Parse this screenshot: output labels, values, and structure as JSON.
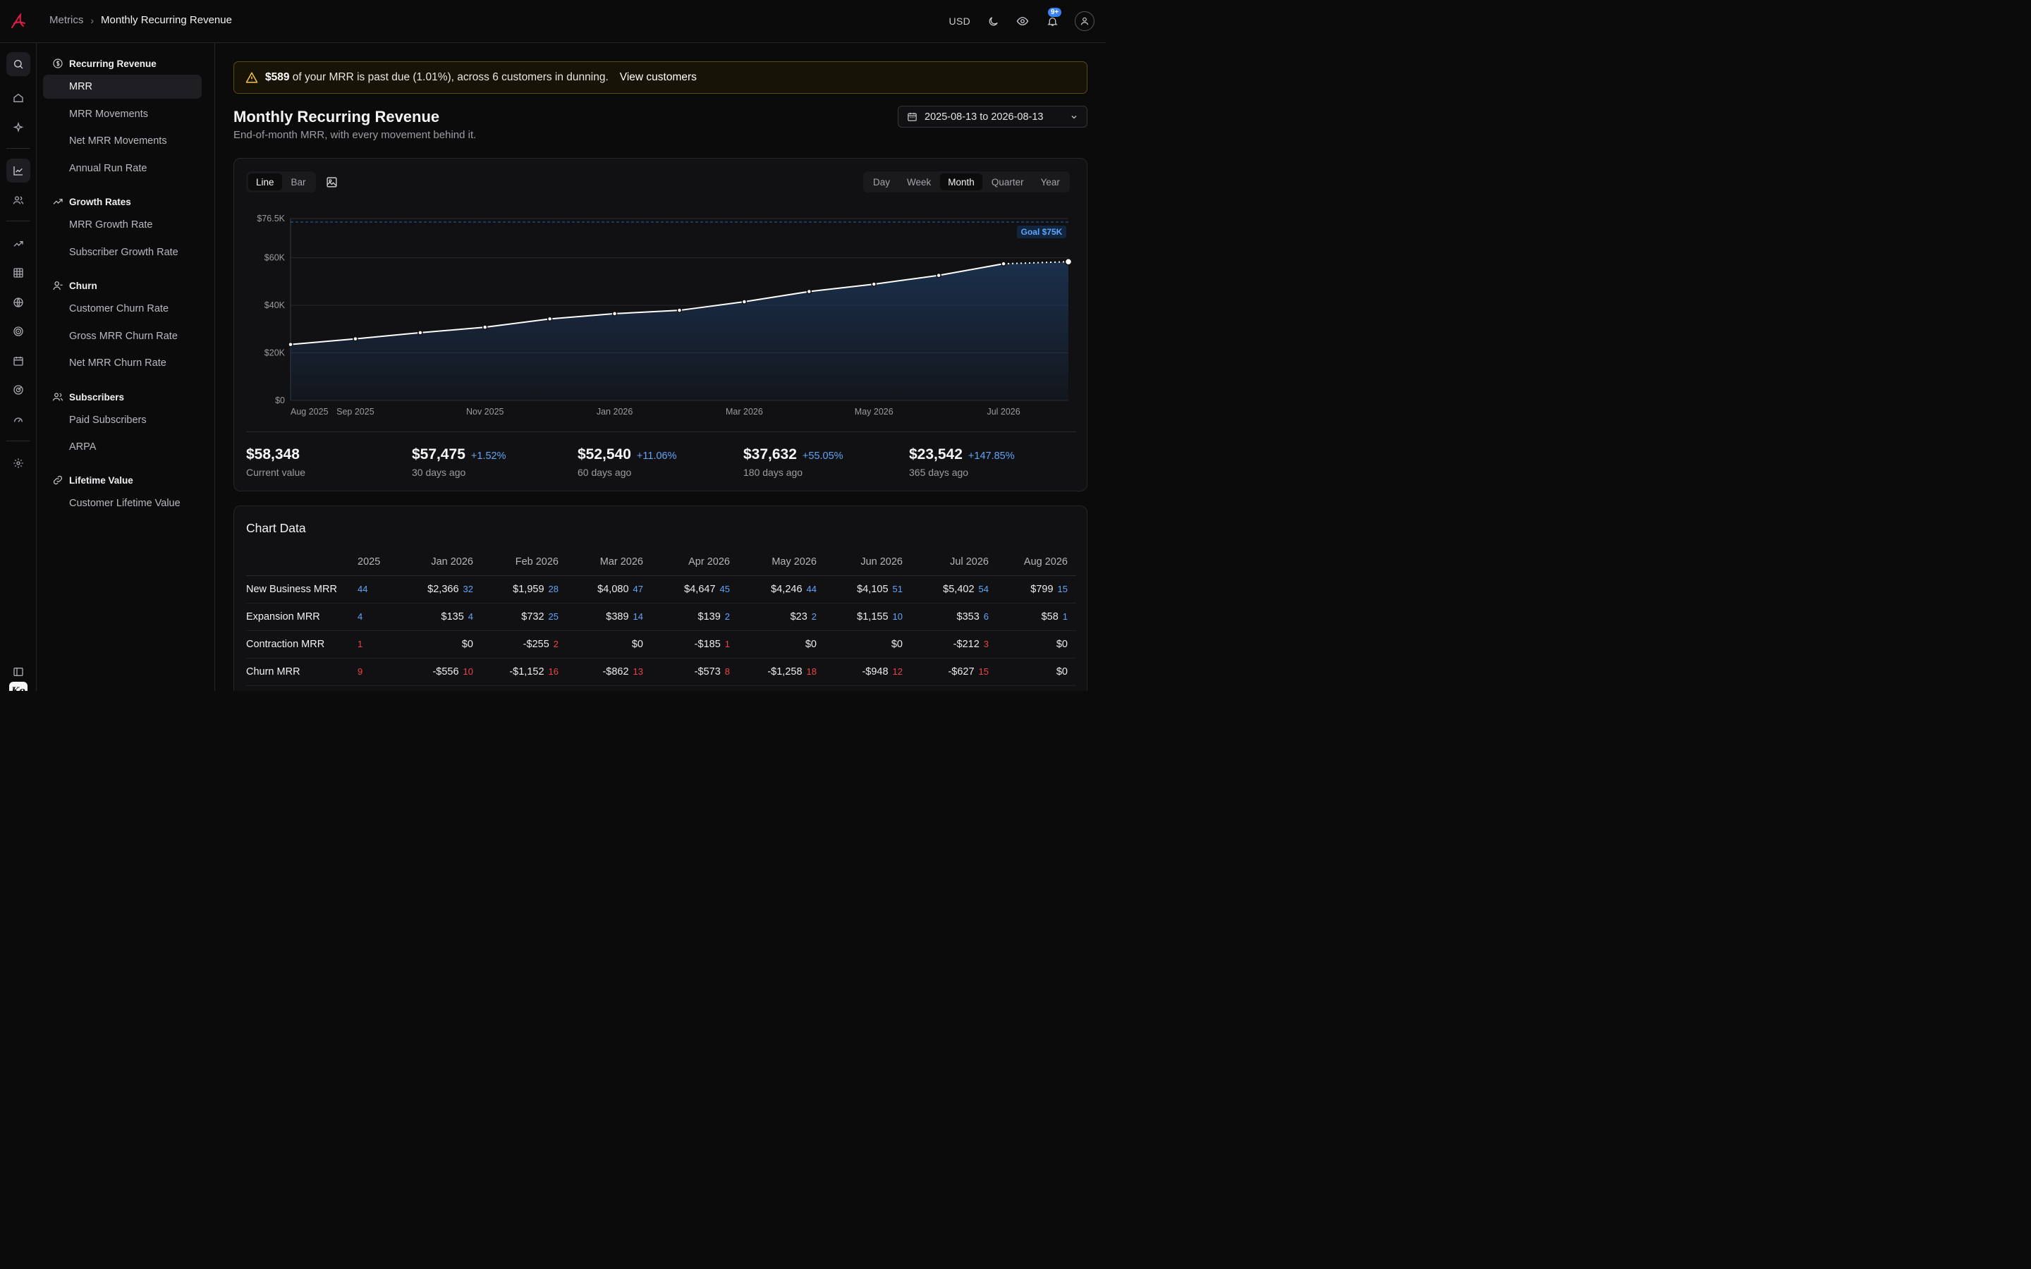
{
  "topbar": {
    "breadcrumb_root": "Metrics",
    "breadcrumb_current": "Monthly Recurring Revenue",
    "currency": "USD",
    "notification_badge": "9+"
  },
  "nav": {
    "groups": [
      {
        "label": "Recurring Revenue",
        "icon": "dollar-circle-icon",
        "items": [
          "MRR",
          "MRR Movements",
          "Net MRR Movements",
          "Annual Run Rate"
        ]
      },
      {
        "label": "Growth Rates",
        "icon": "trending-up-icon",
        "items": [
          "MRR Growth Rate",
          "Subscriber Growth Rate"
        ]
      },
      {
        "label": "Churn",
        "icon": "user-minus-icon",
        "items": [
          "Customer Churn Rate",
          "Gross MRR Churn Rate",
          "Net MRR Churn Rate"
        ]
      },
      {
        "label": "Subscribers",
        "icon": "users-icon",
        "items": [
          "Paid Subscribers",
          "ARPA"
        ]
      },
      {
        "label": "Lifetime Value",
        "icon": "link-icon",
        "items": [
          "Customer Lifetime Value"
        ]
      }
    ],
    "active_item": "MRR"
  },
  "rail_logo_text": "Ko",
  "alert": {
    "amount": "$589",
    "text": "of your MRR is past due (1.01%), across 6 customers in dunning.",
    "link": "View customers"
  },
  "page": {
    "title": "Monthly Recurring Revenue",
    "subtitle": "End-of-month MRR, with every movement behind it.",
    "date_range": "2025-08-13 to 2026-08-13"
  },
  "chart_controls": {
    "types": [
      "Line",
      "Bar"
    ],
    "active_type": "Line",
    "intervals": [
      "Day",
      "Week",
      "Month",
      "Quarter",
      "Year"
    ],
    "active_interval": "Month"
  },
  "chart_data": {
    "type": "area",
    "x": [
      "Aug 2025",
      "Sep 2025",
      "Oct 2025",
      "Nov 2025",
      "Dec 2025",
      "Jan 2026",
      "Feb 2026",
      "Mar 2026",
      "Apr 2026",
      "May 2026",
      "Jun 2026",
      "Jul 2026",
      "Aug 2026"
    ],
    "values": [
      23542,
      25900,
      28500,
      30800,
      34300,
      36500,
      37900,
      41500,
      45800,
      48900,
      52600,
      57475,
      58348
    ],
    "projected_last": true,
    "xtick_labels": [
      "Aug 2025",
      "Sep 2025",
      "Nov 2025",
      "Jan 2026",
      "Mar 2026",
      "May 2026",
      "Jul 2026"
    ],
    "yticks": [
      "$0",
      "$20K",
      "$40K",
      "$60K",
      "$76.5K"
    ],
    "ylim": [
      0,
      76500
    ],
    "goal": {
      "value": 75000,
      "label": "Goal $75K"
    },
    "grid": true,
    "colors": {
      "line": "#ffffff",
      "fill": "#1e3a5f",
      "goal": "#3b82f6"
    }
  },
  "stats": [
    {
      "value": "$58,348",
      "pct": "",
      "label": "Current value"
    },
    {
      "value": "$57,475",
      "pct": "+1.52%",
      "label": "30 days ago"
    },
    {
      "value": "$52,540",
      "pct": "+11.06%",
      "label": "60 days ago"
    },
    {
      "value": "$37,632",
      "pct": "+55.05%",
      "label": "180 days ago"
    },
    {
      "value": "$23,542",
      "pct": "+147.85%",
      "label": "365 days ago"
    }
  ],
  "table": {
    "title": "Chart Data",
    "columns": [
      "",
      "2025",
      "Jan 2026",
      "Feb 2026",
      "Mar 2026",
      "Apr 2026",
      "May 2026",
      "Jun 2026",
      "Jul 2026",
      "Aug 2026"
    ],
    "rows": [
      {
        "label": "New Business MRR",
        "lead": {
          "count": "44",
          "tone": "b"
        },
        "cells": [
          {
            "v": "$2,366",
            "c": "32",
            "t": "b"
          },
          {
            "v": "$1,959",
            "c": "28",
            "t": "b"
          },
          {
            "v": "$4,080",
            "c": "47",
            "t": "b"
          },
          {
            "v": "$4,647",
            "c": "45",
            "t": "b"
          },
          {
            "v": "$4,246",
            "c": "44",
            "t": "b"
          },
          {
            "v": "$4,105",
            "c": "51",
            "t": "b"
          },
          {
            "v": "$5,402",
            "c": "54",
            "t": "b"
          },
          {
            "v": "$799",
            "c": "15",
            "t": "b"
          }
        ]
      },
      {
        "label": "Expansion MRR",
        "lead": {
          "count": "4",
          "tone": "b"
        },
        "cells": [
          {
            "v": "$135",
            "c": "4",
            "t": "b"
          },
          {
            "v": "$732",
            "c": "25",
            "t": "b"
          },
          {
            "v": "$389",
            "c": "14",
            "t": "b"
          },
          {
            "v": "$139",
            "c": "2",
            "t": "b"
          },
          {
            "v": "$23",
            "c": "2",
            "t": "b"
          },
          {
            "v": "$1,155",
            "c": "10",
            "t": "b"
          },
          {
            "v": "$353",
            "c": "6",
            "t": "b"
          },
          {
            "v": "$58",
            "c": "1",
            "t": "b"
          }
        ]
      },
      {
        "label": "Contraction MRR",
        "lead": {
          "count": "1",
          "tone": "r"
        },
        "cells": [
          {
            "v": "$0",
            "c": "",
            "t": ""
          },
          {
            "v": "-$255",
            "c": "2",
            "t": "r"
          },
          {
            "v": "$0",
            "c": "",
            "t": ""
          },
          {
            "v": "-$185",
            "c": "1",
            "t": "r"
          },
          {
            "v": "$0",
            "c": "",
            "t": ""
          },
          {
            "v": "$0",
            "c": "",
            "t": ""
          },
          {
            "v": "-$212",
            "c": "3",
            "t": "r"
          },
          {
            "v": "$0",
            "c": "",
            "t": ""
          }
        ]
      },
      {
        "label": "Churn MRR",
        "lead": {
          "count": "9",
          "tone": "r"
        },
        "cells": [
          {
            "v": "-$556",
            "c": "10",
            "t": "r"
          },
          {
            "v": "-$1,152",
            "c": "16",
            "t": "r"
          },
          {
            "v": "-$862",
            "c": "13",
            "t": "r"
          },
          {
            "v": "-$573",
            "c": "8",
            "t": "r"
          },
          {
            "v": "-$1,258",
            "c": "18",
            "t": "r"
          },
          {
            "v": "-$948",
            "c": "12",
            "t": "r"
          },
          {
            "v": "-$627",
            "c": "15",
            "t": "r"
          },
          {
            "v": "$0",
            "c": "",
            "t": ""
          }
        ]
      }
    ]
  }
}
